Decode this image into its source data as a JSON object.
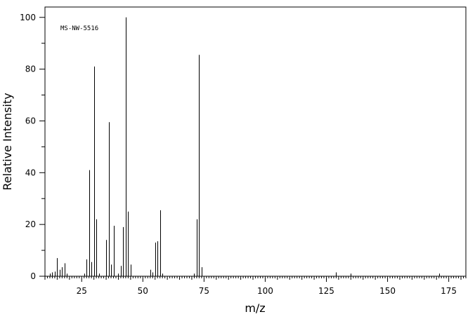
{
  "chart_data": {
    "type": "bar",
    "annotation": "MS-NW-5516",
    "xlabel": "m/z",
    "ylabel": "Relative Intensity",
    "xlim": [
      10,
      182
    ],
    "ylim": [
      0,
      104
    ],
    "x_ticks": [
      25,
      50,
      75,
      100,
      125,
      150,
      175
    ],
    "y_ticks": [
      0,
      20,
      40,
      60,
      80,
      100
    ],
    "grid": false,
    "legend": "none",
    "peaks": [
      {
        "mz": 12,
        "intensity": 1.0
      },
      {
        "mz": 13,
        "intensity": 1.5
      },
      {
        "mz": 14,
        "intensity": 1.8
      },
      {
        "mz": 15,
        "intensity": 7.0
      },
      {
        "mz": 16,
        "intensity": 2.5
      },
      {
        "mz": 17,
        "intensity": 3.5
      },
      {
        "mz": 18,
        "intensity": 5.0
      },
      {
        "mz": 19,
        "intensity": 1.0
      },
      {
        "mz": 26,
        "intensity": 1.0
      },
      {
        "mz": 27,
        "intensity": 6.5
      },
      {
        "mz": 28,
        "intensity": 41.0
      },
      {
        "mz": 29,
        "intensity": 5.5
      },
      {
        "mz": 30,
        "intensity": 81.0
      },
      {
        "mz": 31,
        "intensity": 22.0
      },
      {
        "mz": 32,
        "intensity": 1.0
      },
      {
        "mz": 35,
        "intensity": 14.0
      },
      {
        "mz": 36,
        "intensity": 59.5
      },
      {
        "mz": 37,
        "intensity": 4.5
      },
      {
        "mz": 38,
        "intensity": 19.5
      },
      {
        "mz": 40,
        "intensity": 1.0
      },
      {
        "mz": 41,
        "intensity": 4.0
      },
      {
        "mz": 42,
        "intensity": 19.0
      },
      {
        "mz": 43,
        "intensity": 100.0
      },
      {
        "mz": 44,
        "intensity": 25.0
      },
      {
        "mz": 45,
        "intensity": 4.5
      },
      {
        "mz": 53,
        "intensity": 2.5
      },
      {
        "mz": 54,
        "intensity": 1.5
      },
      {
        "mz": 55,
        "intensity": 13.0
      },
      {
        "mz": 56,
        "intensity": 13.5
      },
      {
        "mz": 57,
        "intensity": 25.5
      },
      {
        "mz": 58,
        "intensity": 1.0
      },
      {
        "mz": 71,
        "intensity": 1.0
      },
      {
        "mz": 72,
        "intensity": 22.0
      },
      {
        "mz": 73,
        "intensity": 85.5
      },
      {
        "mz": 74,
        "intensity": 3.5
      },
      {
        "mz": 129,
        "intensity": 1.5
      },
      {
        "mz": 135,
        "intensity": 1.0
      },
      {
        "mz": 171,
        "intensity": 1.0
      }
    ]
  }
}
